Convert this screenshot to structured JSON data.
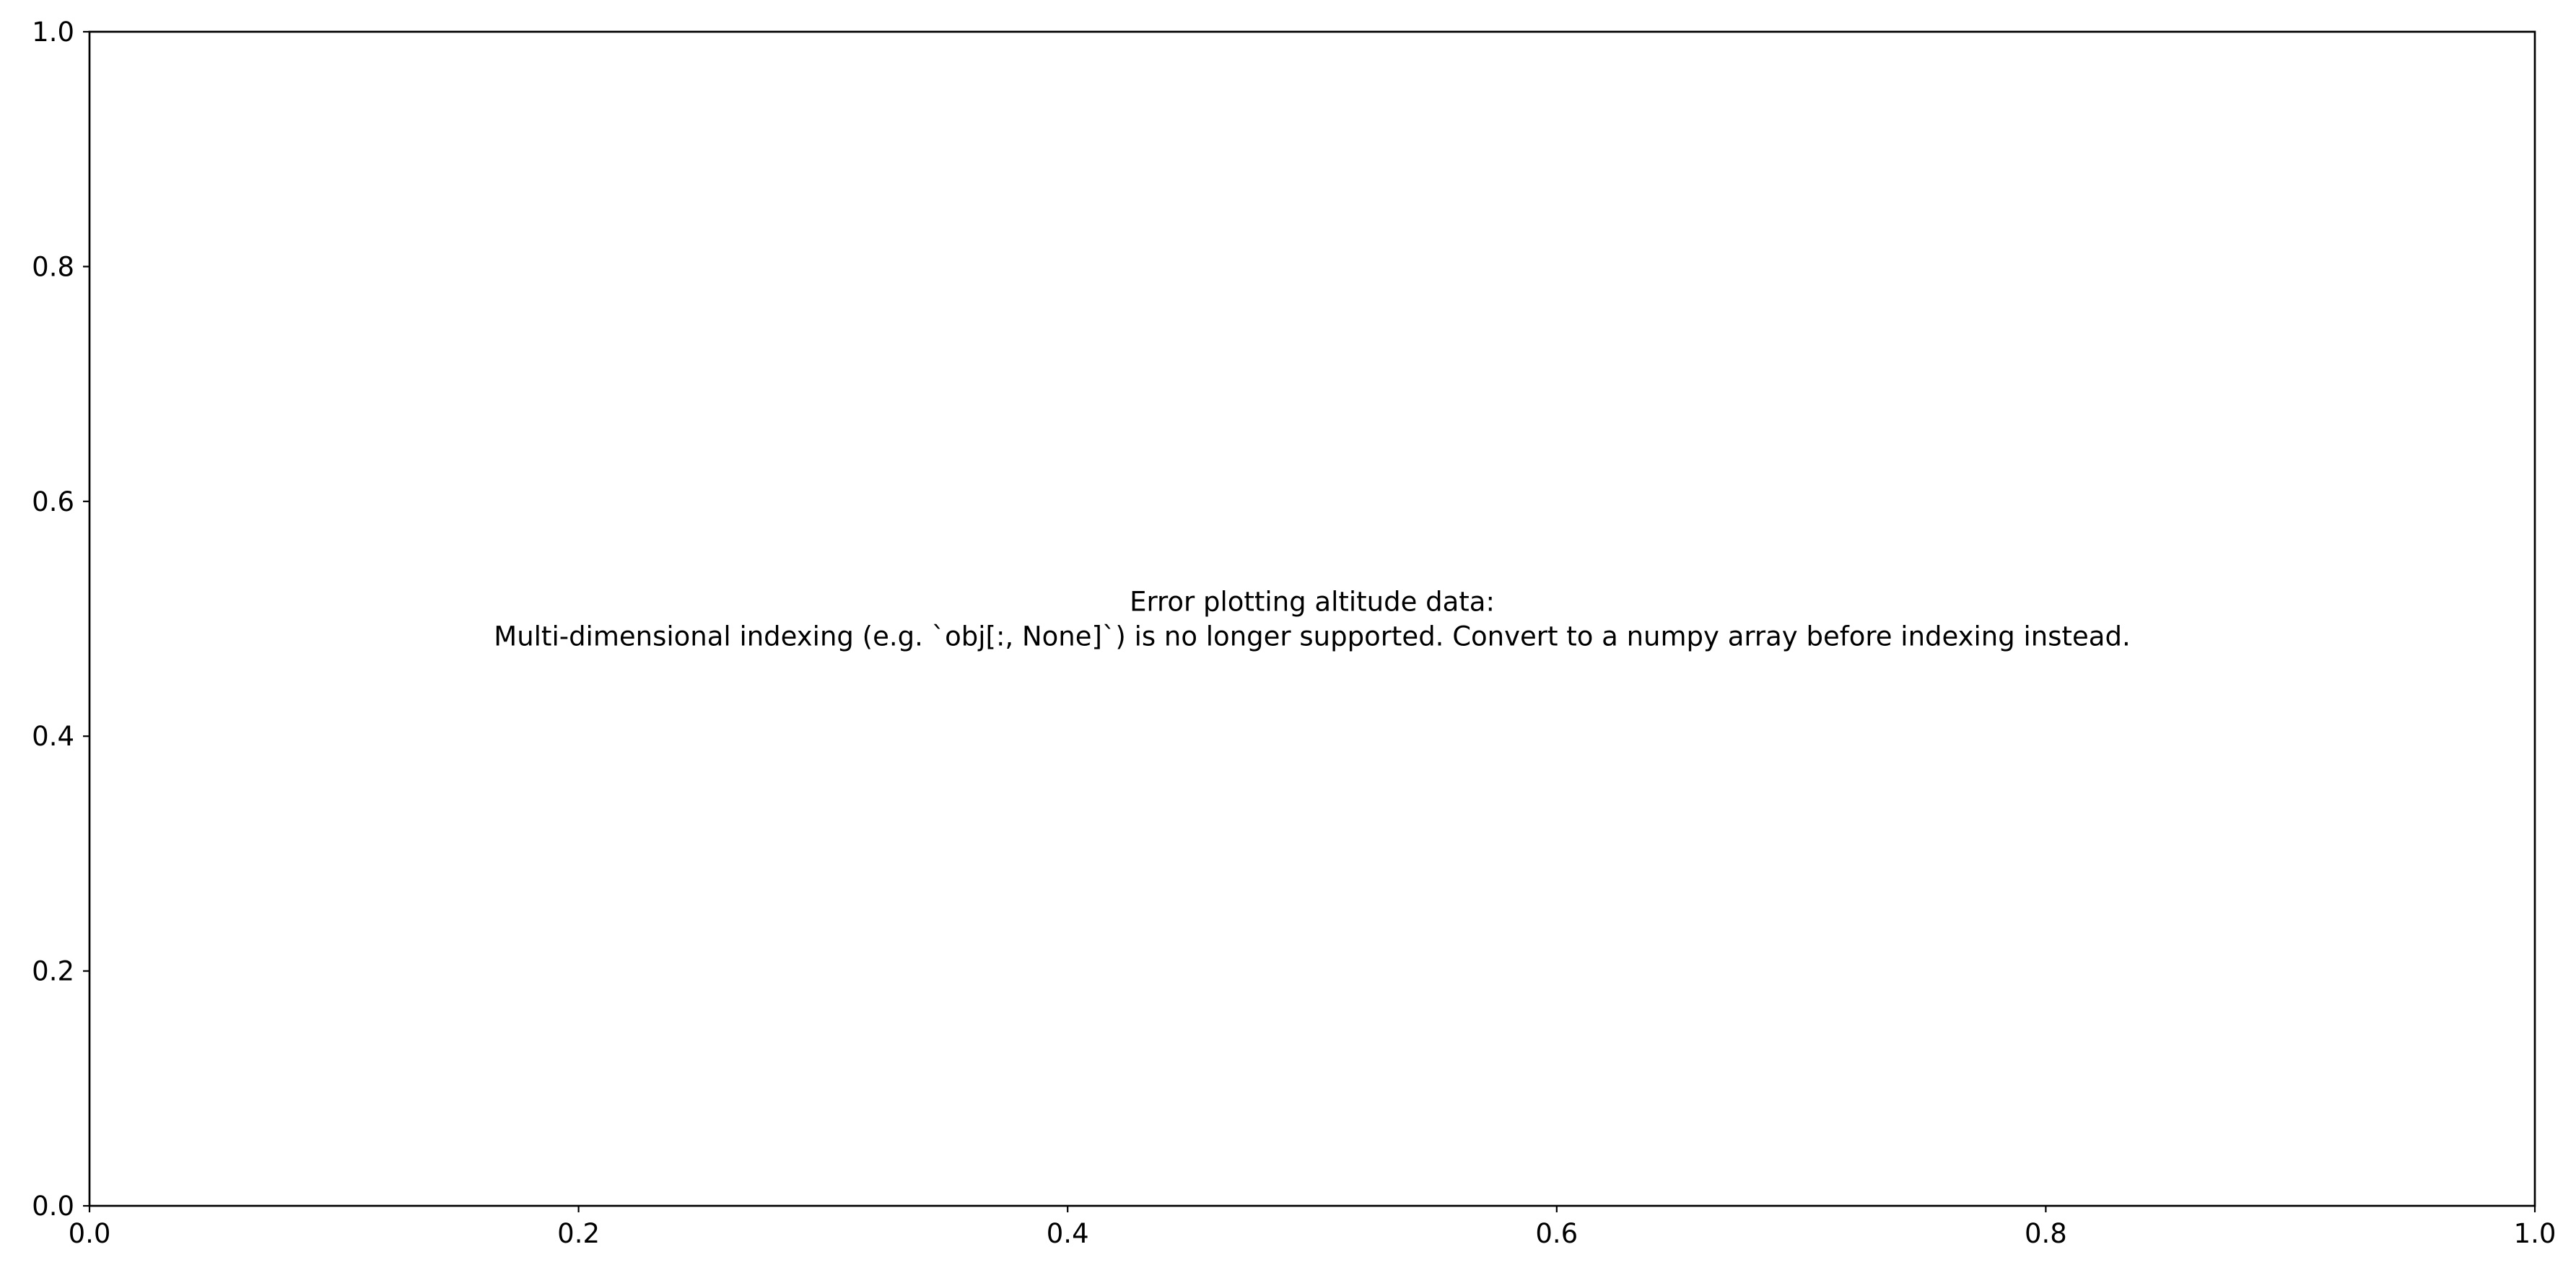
{
  "chart_data": {
    "type": "line",
    "title": "",
    "xlabel": "",
    "ylabel": "",
    "xlim": [
      0.0,
      1.0
    ],
    "ylim": [
      0.0,
      1.0
    ],
    "grid": false,
    "series": [],
    "x_ticks": [
      {
        "value": 0.0,
        "label": "0.0"
      },
      {
        "value": 0.2,
        "label": "0.2"
      },
      {
        "value": 0.4,
        "label": "0.4"
      },
      {
        "value": 0.6,
        "label": "0.6"
      },
      {
        "value": 0.8,
        "label": "0.8"
      },
      {
        "value": 1.0,
        "label": "1.0"
      }
    ],
    "y_ticks": [
      {
        "value": 0.0,
        "label": "0.0"
      },
      {
        "value": 0.2,
        "label": "0.2"
      },
      {
        "value": 0.4,
        "label": "0.4"
      },
      {
        "value": 0.6,
        "label": "0.6"
      },
      {
        "value": 0.8,
        "label": "0.8"
      },
      {
        "value": 1.0,
        "label": "1.0"
      }
    ],
    "annotations": [
      {
        "x": 0.5,
        "y": 0.5,
        "lines": [
          "Error plotting altitude data:",
          "Multi-dimensional indexing (e.g. `obj[:, None]`) is no longer supported. Convert to a numpy array before indexing instead."
        ]
      }
    ]
  }
}
